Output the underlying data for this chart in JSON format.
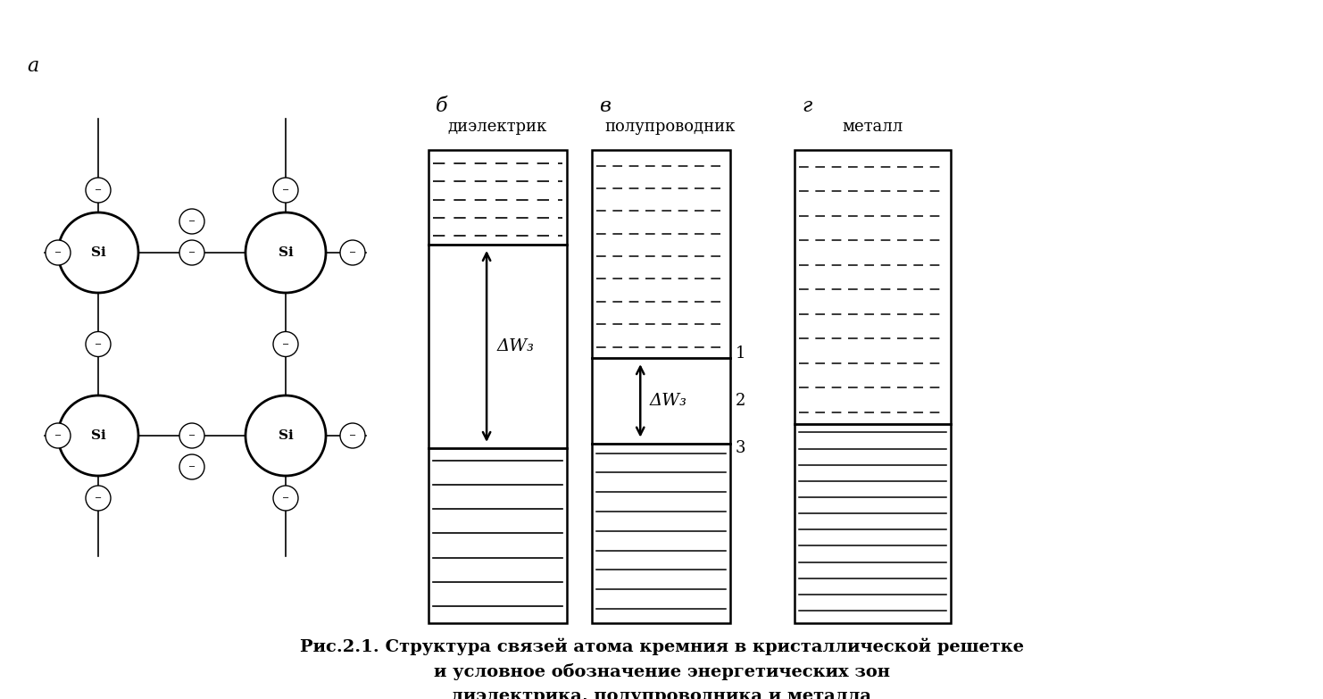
{
  "fig_width": 14.82,
  "fig_height": 7.83,
  "dpi": 100,
  "bg_color": "#ffffff",
  "label_a": "a",
  "label_b": "б",
  "label_v": "в",
  "label_g": "г",
  "title_dielektrik": "диэлектрик",
  "title_poluprov": "полупроводник",
  "title_metall": "металл",
  "dW3": "ΔW₃",
  "num1": "1",
  "num2": "2",
  "num3": "3",
  "caption_line1": "Рис.2.1. Структура связей атома кремния в кристаллической решетке",
  "caption_line2": "и условное обозначение энергетических зон",
  "caption_line3": "диэлектрика, полупроводника и металла",
  "si_label": "Si",
  "minus": "−",
  "lw_border": 1.8,
  "lw_thick": 2.0,
  "lw_line": 0.9,
  "lw_grid": 1.2
}
